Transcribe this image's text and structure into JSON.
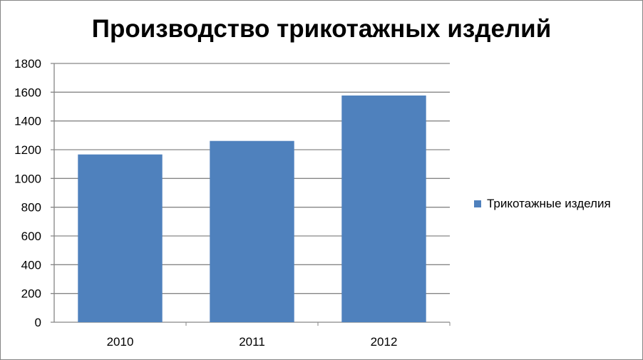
{
  "chart_data": {
    "type": "bar",
    "title": "Производство трикотажных изделий",
    "categories": [
      "2010",
      "2011",
      "2012"
    ],
    "series": [
      {
        "name": "Трикотажные изделия",
        "values": [
          1167,
          1261,
          1577
        ],
        "color": "#4f81bd"
      }
    ],
    "ylim": [
      0,
      1800
    ],
    "yticks": [
      0,
      200,
      400,
      600,
      800,
      1000,
      1200,
      1400,
      1600,
      1800
    ],
    "grid": true,
    "legend": "right"
  }
}
